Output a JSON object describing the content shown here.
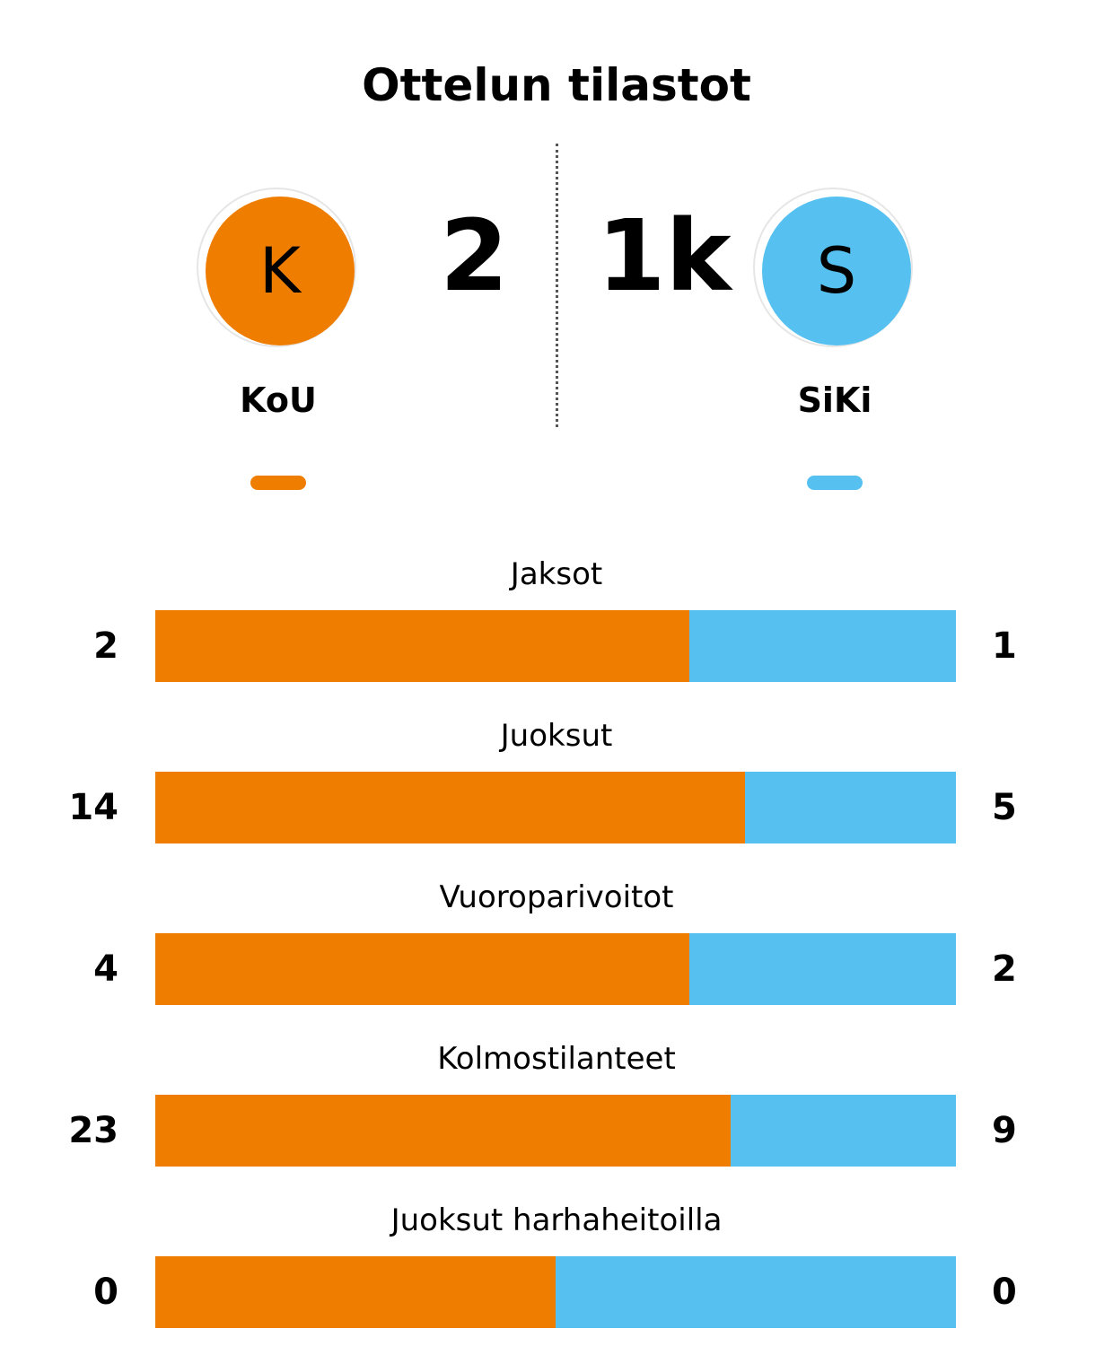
{
  "title": "Ottelun tilastot",
  "colors": {
    "home": "#EF7D00",
    "away": "#56C1F0"
  },
  "home": {
    "initial": "K",
    "name": "KoU",
    "score": "2"
  },
  "away": {
    "initial": "S",
    "name": "SiKi",
    "score": "1k"
  },
  "chart_data": {
    "type": "bar",
    "categories": [
      "Jaksot",
      "Juoksut",
      "Vuoroparivoitot",
      "Kolmostilanteet",
      "Juoksut harhaheitoilla"
    ],
    "series": [
      {
        "name": "KoU",
        "values": [
          2,
          14,
          4,
          23,
          0
        ]
      },
      {
        "name": "SiKi",
        "values": [
          1,
          5,
          2,
          9,
          0
        ]
      }
    ]
  }
}
